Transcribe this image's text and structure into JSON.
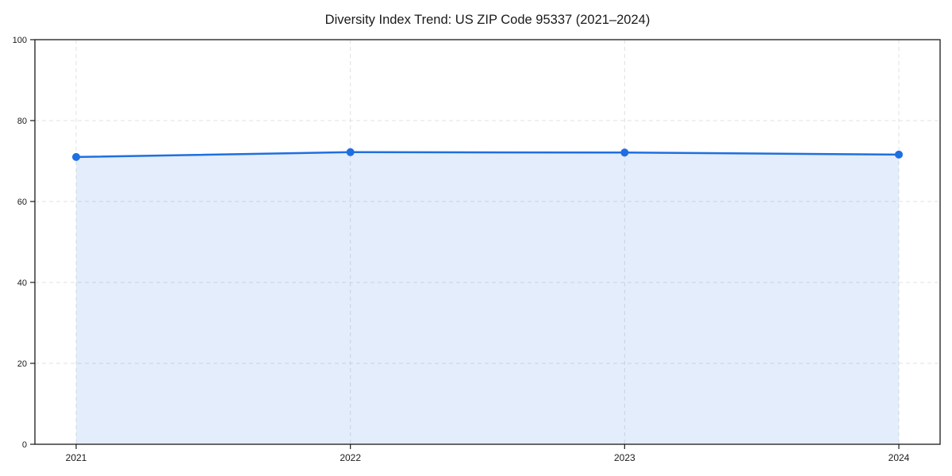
{
  "chart_data": {
    "type": "area",
    "title": "Diversity Index Trend: US ZIP Code 95337 (2021–2024)",
    "categories": [
      "2021",
      "2022",
      "2023",
      "2024"
    ],
    "series": [
      {
        "name": "Diversity Index",
        "values": [
          71.0,
          72.2,
          72.1,
          71.6
        ]
      }
    ],
    "xlabel": "",
    "ylabel": "",
    "ylim": [
      0,
      100
    ],
    "yticks": [
      0,
      20,
      40,
      60,
      80,
      100
    ],
    "grid": true,
    "grid_style": "dashed",
    "legend_position": "none",
    "colors": {
      "line": "#1f6fe0",
      "marker": "#1f6fe0",
      "fill": "rgba(31, 111, 224, 0.12)",
      "grid": "#e0e0e0",
      "axis": "#1a1a1a",
      "tick_label": "#1a1a1a",
      "background": "#ffffff"
    }
  }
}
